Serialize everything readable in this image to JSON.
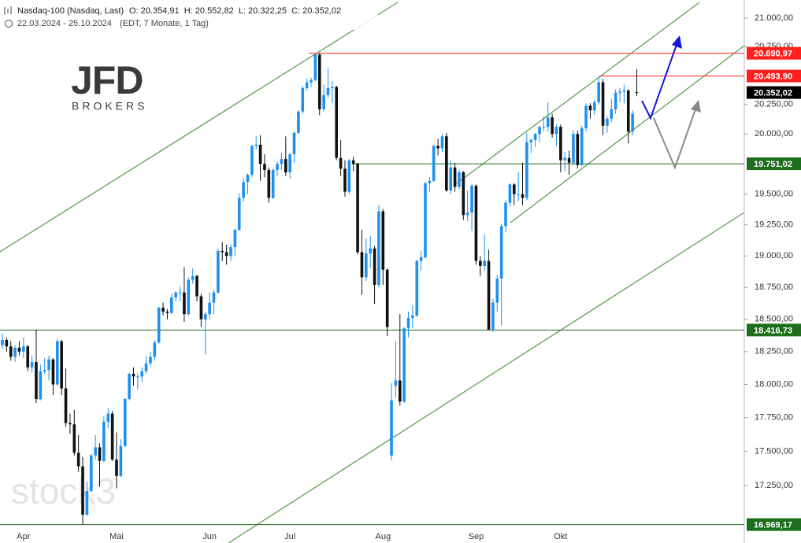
{
  "header": {
    "symbol": "Nasdaq-100 (Nasdaq, Last)",
    "ohlc": "O: 20.354,91  H: 20.552,82  L: 20.322,25  C: 20.352,02",
    "range": "22.03.2024 - 25.10.2024",
    "info": "(EDT, 7 Monate, 1 Tag)"
  },
  "logo": {
    "name": "JFD",
    "sub": "BROKERS"
  },
  "watermark": "stock3",
  "chart_data": {
    "type": "candlestick",
    "log_scale": true,
    "grid": false,
    "up_color": "#1e90f0",
    "down_color": "#111111",
    "ylim": [
      16950,
      21160
    ],
    "yticks": [
      {
        "value": 17250,
        "label": "17.250,00"
      },
      {
        "value": 17500,
        "label": "17.500,00"
      },
      {
        "value": 17750,
        "label": "17.750,00"
      },
      {
        "value": 18000,
        "label": "18.000,00"
      },
      {
        "value": 18250,
        "label": "18.250,00"
      },
      {
        "value": 18500,
        "label": "18.500,00"
      },
      {
        "value": 18750,
        "label": "18.750,00"
      },
      {
        "value": 19000,
        "label": "19.000,00"
      },
      {
        "value": 19250,
        "label": "19.250,00"
      },
      {
        "value": 19500,
        "label": "19.500,00"
      },
      {
        "value": 20000,
        "label": "20.000,00"
      },
      {
        "value": 20250,
        "label": "20.250,00"
      },
      {
        "value": 20750,
        "label": "20.750,00"
      },
      {
        "value": 21000,
        "label": "21.000,00"
      }
    ],
    "levels": [
      {
        "value": 20690.97,
        "label": "20.690,97",
        "color": "#ff1f1f"
      },
      {
        "value": 20493.9,
        "label": "20.493,90",
        "color": "#ff1f1f"
      },
      {
        "value": 19751.02,
        "label": "19.751,02",
        "color": "#1d6e1d"
      },
      {
        "value": 18416.73,
        "label": "18.416,73",
        "color": "#1d6e1d"
      },
      {
        "value": 16969.17,
        "label": "16.969,17",
        "color": "#1d6e1d"
      }
    ],
    "last_price": {
      "value": 20352.02,
      "label": "20.352,02",
      "color": "#000000"
    },
    "categories": [
      null,
      null,
      null,
      null,
      null,
      "Apr",
      null,
      null,
      null,
      null,
      null,
      null,
      null,
      null,
      null,
      null,
      null,
      null,
      null,
      null,
      null,
      null,
      null,
      null,
      null,
      null,
      null,
      "Mai",
      null,
      null,
      null,
      null,
      null,
      null,
      null,
      null,
      null,
      null,
      null,
      null,
      null,
      null,
      null,
      null,
      null,
      null,
      null,
      null,
      null,
      "Jun",
      null,
      null,
      null,
      null,
      null,
      null,
      null,
      null,
      null,
      null,
      null,
      null,
      null,
      null,
      null,
      null,
      null,
      null,
      "Jul",
      null,
      null,
      null,
      null,
      null,
      null,
      null,
      null,
      null,
      null,
      null,
      null,
      null,
      null,
      null,
      null,
      null,
      null,
      null,
      null,
      null,
      "Aug",
      null,
      null,
      null,
      null,
      null,
      null,
      null,
      null,
      null,
      null,
      null,
      null,
      null,
      null,
      null,
      null,
      null,
      null,
      null,
      null,
      null,
      "Sep",
      null,
      null,
      null,
      null,
      null,
      null,
      null,
      null,
      null,
      null,
      null,
      null,
      null,
      null,
      null,
      null,
      null,
      null,
      null,
      "Okt",
      null,
      null,
      null,
      null,
      null,
      null,
      null,
      null,
      null,
      null,
      null,
      null,
      null,
      null,
      null,
      null,
      null,
      null
    ],
    "open": [
      18300,
      18340,
      18290,
      18210,
      18280,
      18250,
      18290,
      18130,
      18170,
      17890,
      18100,
      18110,
      18190,
      18000,
      18330,
      17970,
      17710,
      17700,
      17490,
      17390,
      17040,
      17210,
      17470,
      17530,
      17430,
      17720,
      17780,
      17440,
      17320,
      17540,
      17890,
      18080,
      18060,
      18060,
      18100,
      18160,
      18210,
      18320,
      18590,
      18560,
      18550,
      18670,
      18710,
      18710,
      18540,
      18810,
      18840,
      18680,
      18500,
      18540,
      18630,
      18710,
      19040,
      19030,
      19000,
      19070,
      19210,
      19470,
      19600,
      19660,
      19900,
      19910,
      19750,
      19700,
      19470,
      19700,
      19750,
      19790,
      19680,
      19830,
      20010,
      20190,
      20390,
      20440,
      20460,
      20680,
      20210,
      20330,
      20390,
      20400,
      19800,
      19710,
      19520,
      19780,
      19750,
      19030,
      18830,
      19020,
      19060,
      18770,
      19360,
      18890,
      17470,
      17990,
      18030,
      17870,
      18430,
      18510,
      18530,
      18960,
      18990,
      19590,
      19610,
      19900,
      19880,
      19980,
      19530,
      19720,
      19560,
      19680,
      19330,
      19350,
      19570,
      18960,
      18920,
      18960,
      18420,
      18630,
      18820,
      19240,
      19430,
      19580,
      19500,
      19500,
      19470,
      19930,
      19950,
      20000,
      20060,
      20060,
      20140,
      20000,
      20060,
      19780,
      19800,
      19760,
      20000,
      19740,
      20050,
      20240,
      20200,
      20270,
      20440,
      20070,
      20130,
      20210,
      20350,
      20360,
      20370,
      20020,
      20354.91
    ],
    "high": [
      18390,
      18360,
      18330,
      18300,
      18330,
      18360,
      18300,
      18220,
      18420,
      18150,
      18200,
      18220,
      18200,
      18350,
      18340,
      18120,
      17780,
      17810,
      17620,
      17460,
      17280,
      17480,
      17620,
      17560,
      17760,
      17820,
      17800,
      17640,
      17590,
      17900,
      18090,
      18130,
      18080,
      18130,
      18220,
      18250,
      18340,
      18600,
      18630,
      18580,
      18700,
      18720,
      18760,
      18910,
      18830,
      18900,
      18850,
      18700,
      18560,
      18710,
      18730,
      19060,
      19110,
      19090,
      19090,
      19220,
      19510,
      19630,
      19670,
      19910,
      19980,
      19990,
      19830,
      19720,
      19710,
      19770,
      19840,
      19980,
      19840,
      20020,
      20200,
      20410,
      20470,
      20480,
      20690.97,
      20690,
      20420,
      20560,
      20450,
      20410,
      19950,
      19780,
      19790,
      19810,
      19760,
      19210,
      19140,
      19160,
      19080,
      19410,
      19380,
      18900,
      18010,
      18330,
      18540,
      18440,
      18560,
      18610,
      18970,
      19040,
      19600,
      19640,
      19910,
      19960,
      20000,
      20010,
      19780,
      19760,
      19700,
      19690,
      19530,
      19580,
      19580,
      19000,
      19170,
      19050,
      18660,
      18850,
      19260,
      19450,
      19590,
      19590,
      19680,
      19760,
      20010,
      19960,
      20010,
      20070,
      20150,
      20270,
      20170,
      20080,
      20080,
      19850,
      19860,
      20030,
      20030,
      20070,
      20260,
      20260,
      20290,
      20493.9,
      20470,
      20150,
      20300,
      20380,
      20390,
      20420,
      20380,
      20200,
      20552.82
    ],
    "low": [
      18270,
      18250,
      18180,
      18170,
      18220,
      18200,
      18100,
      18090,
      17860,
      17880,
      18080,
      18030,
      17920,
      17990,
      17920,
      17680,
      17630,
      17470,
      17350,
      16969.17,
      17030,
      17200,
      17440,
      17240,
      17420,
      17670,
      17430,
      17230,
      17310,
      17530,
      17880,
      17990,
      17960,
      18020,
      18080,
      18140,
      18180,
      18310,
      18530,
      18500,
      18540,
      18640,
      18640,
      18480,
      18530,
      18780,
      18640,
      18440,
      18230,
      18500,
      18540,
      18700,
      18960,
      18930,
      18960,
      19000,
      19200,
      19440,
      19500,
      19640,
      19870,
      19610,
      19640,
      19430,
      19460,
      19650,
      19700,
      19650,
      19630,
      19760,
      20000,
      20170,
      20370,
      20400,
      20450,
      20160,
      20190,
      20310,
      20260,
      19780,
      19650,
      19480,
      19500,
      19690,
      19010,
      18690,
      18800,
      18900,
      18620,
      18750,
      18770,
      18370,
      17432,
      17900,
      17840,
      17860,
      18360,
      18430,
      18520,
      18880,
      18980,
      19520,
      19600,
      19820,
      19850,
      19520,
      19500,
      19520,
      19540,
      19290,
      19280,
      19200,
      18930,
      18840,
      18880,
      18416.73,
      18400,
      18560,
      18450,
      19190,
      19400,
      19410,
      19440,
      19410,
      19450,
      19840,
      19890,
      19930,
      20020,
      20020,
      19970,
      19900,
      19680,
      19690,
      19660,
      19740,
      19710,
      19730,
      20020,
      20130,
      20160,
      20250,
      19990,
      20010,
      20100,
      20170,
      20270,
      20260,
      19920,
      19990,
      20322.25
    ],
    "close": [
      18340,
      18290,
      18210,
      18280,
      18250,
      18290,
      18130,
      18170,
      17890,
      18100,
      18110,
      18190,
      18000,
      18330,
      17970,
      17710,
      17700,
      17490,
      17390,
      17040,
      17210,
      17470,
      17530,
      17430,
      17720,
      17780,
      17440,
      17320,
      17540,
      17890,
      18080,
      18060,
      18060,
      18100,
      18160,
      18210,
      18320,
      18590,
      18560,
      18550,
      18670,
      18710,
      18710,
      18540,
      18810,
      18840,
      18680,
      18500,
      18540,
      18630,
      18710,
      19040,
      19030,
      19000,
      19070,
      19210,
      19470,
      19600,
      19660,
      19900,
      19910,
      19750,
      19700,
      19470,
      19700,
      19750,
      19790,
      19680,
      19830,
      20010,
      20190,
      20390,
      20440,
      20460,
      20680,
      20210,
      20330,
      20390,
      20400,
      19800,
      19710,
      19520,
      19780,
      19750,
      19030,
      18830,
      19020,
      19060,
      18770,
      19360,
      18890,
      18440,
      17880,
      18030,
      17870,
      18430,
      18510,
      18530,
      18960,
      18990,
      19590,
      19610,
      19900,
      19880,
      19980,
      19530,
      19720,
      19560,
      19680,
      19330,
      19350,
      19570,
      18960,
      18920,
      18960,
      18420,
      18630,
      18820,
      19240,
      19430,
      19580,
      19500,
      19500,
      19470,
      19930,
      19950,
      20000,
      20060,
      20060,
      20140,
      20000,
      20060,
      19780,
      19800,
      19760,
      20000,
      19740,
      20050,
      20240,
      20200,
      20270,
      20440,
      20070,
      20130,
      20210,
      20350,
      20360,
      20370,
      20020,
      20170,
      20352.02
    ]
  }
}
